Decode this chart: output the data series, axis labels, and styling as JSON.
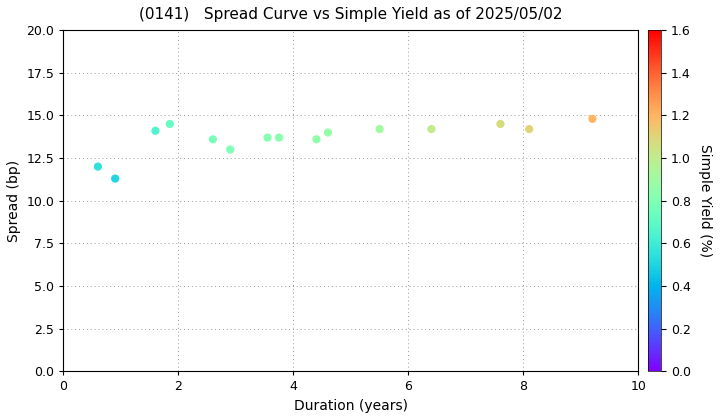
{
  "title": "(0141)   Spread Curve vs Simple Yield as of 2025/05/02",
  "xlabel": "Duration (years)",
  "ylabel": "Spread (bp)",
  "colorbar_label": "Simple Yield (%)",
  "xlim": [
    0,
    10
  ],
  "ylim": [
    0.0,
    20.0
  ],
  "yticks": [
    0.0,
    2.5,
    5.0,
    7.5,
    10.0,
    12.5,
    15.0,
    17.5,
    20.0
  ],
  "xticks": [
    0,
    2,
    4,
    6,
    8,
    10
  ],
  "colorbar_min": 0.0,
  "colorbar_max": 1.6,
  "colorbar_ticks": [
    0.0,
    0.2,
    0.4,
    0.6,
    0.8,
    1.0,
    1.2,
    1.4,
    1.6
  ],
  "points": [
    {
      "duration": 0.6,
      "spread": 12.0,
      "simple_yield": 0.55
    },
    {
      "duration": 0.9,
      "spread": 11.3,
      "simple_yield": 0.5
    },
    {
      "duration": 1.6,
      "spread": 14.1,
      "simple_yield": 0.65
    },
    {
      "duration": 1.85,
      "spread": 14.5,
      "simple_yield": 0.72
    },
    {
      "duration": 2.6,
      "spread": 13.6,
      "simple_yield": 0.78
    },
    {
      "duration": 2.9,
      "spread": 13.0,
      "simple_yield": 0.8
    },
    {
      "duration": 3.55,
      "spread": 13.7,
      "simple_yield": 0.82
    },
    {
      "duration": 3.75,
      "spread": 13.7,
      "simple_yield": 0.83
    },
    {
      "duration": 4.4,
      "spread": 13.6,
      "simple_yield": 0.85
    },
    {
      "duration": 4.6,
      "spread": 14.0,
      "simple_yield": 0.87
    },
    {
      "duration": 5.5,
      "spread": 14.2,
      "simple_yield": 0.9
    },
    {
      "duration": 6.4,
      "spread": 14.2,
      "simple_yield": 1.0
    },
    {
      "duration": 7.6,
      "spread": 14.5,
      "simple_yield": 1.07
    },
    {
      "duration": 8.1,
      "spread": 14.2,
      "simple_yield": 1.1
    },
    {
      "duration": 9.2,
      "spread": 14.8,
      "simple_yield": 1.2
    }
  ],
  "marker_size": 35,
  "background_color": "#ffffff",
  "grid_color": "#999999",
  "title_fontsize": 11,
  "label_fontsize": 10,
  "tick_fontsize": 9
}
